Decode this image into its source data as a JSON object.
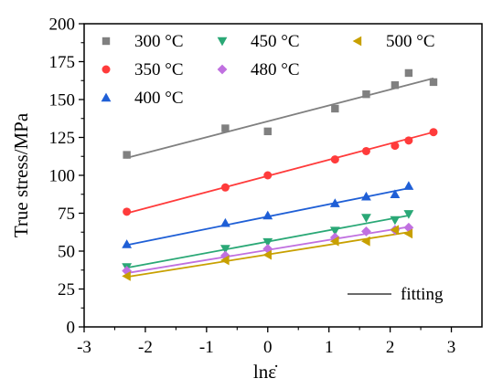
{
  "chart_data": {
    "type": "scatter",
    "xlabel": "lnε̇",
    "ylabel": "True stress/MPa",
    "xlim": [
      -3,
      3.5
    ],
    "ylim": [
      0,
      200
    ],
    "x_ticks": [
      "-3",
      "-2",
      "-1",
      "0",
      "1",
      "2",
      "3"
    ],
    "y_ticks": [
      "0",
      "25",
      "50",
      "75",
      "100",
      "125",
      "150",
      "175",
      "200"
    ],
    "grid": false,
    "legend_position": "top",
    "series": [
      {
        "name": "300 °C",
        "marker": "square",
        "color": "#808080",
        "x": [
          -2.303,
          -0.693,
          0.0,
          1.099,
          1.609,
          2.079,
          2.303,
          2.708
        ],
        "y": [
          113.5,
          131.0,
          129.0,
          144.0,
          153.5,
          159.5,
          167.5,
          161.5
        ],
        "fit": [
          [
            -2.303,
            111.5
          ],
          [
            2.708,
            164.0
          ]
        ]
      },
      {
        "name": "350 °C",
        "marker": "circle",
        "color": "#ff3b3b",
        "x": [
          -2.303,
          -0.693,
          0.0,
          1.099,
          1.609,
          2.079,
          2.303,
          2.708
        ],
        "y": [
          76.0,
          92.0,
          100.0,
          110.5,
          116.0,
          119.5,
          123.0,
          128.5
        ],
        "fit": [
          [
            -2.303,
            75.0
          ],
          [
            2.708,
            128.5
          ]
        ]
      },
      {
        "name": "400 °C",
        "marker": "triangle-up",
        "color": "#1f5fd6",
        "x": [
          -2.303,
          -0.693,
          0.0,
          1.099,
          1.609,
          2.079,
          2.303
        ],
        "y": [
          54.5,
          68.5,
          73.5,
          81.5,
          86.0,
          87.5,
          93.0
        ],
        "fit": [
          [
            -2.303,
            54.0
          ],
          [
            2.303,
            91.5
          ]
        ]
      },
      {
        "name": "450 °C",
        "marker": "triangle-down",
        "color": "#2aa876",
        "x": [
          -2.303,
          -0.693,
          0.0,
          1.099,
          1.609,
          2.079,
          2.303
        ],
        "y": [
          39.5,
          51.5,
          56.0,
          63.5,
          72.0,
          70.5,
          74.5
        ],
        "fit": [
          [
            -2.303,
            39.0
          ],
          [
            2.303,
            73.5
          ]
        ]
      },
      {
        "name": "480 °C",
        "marker": "diamond",
        "color": "#c070e0",
        "x": [
          -2.303,
          -0.693,
          0.0,
          1.099,
          1.609,
          2.079,
          2.303
        ],
        "y": [
          37.0,
          47.0,
          51.5,
          59.0,
          63.0,
          64.0,
          65.5
        ],
        "fit": [
          [
            -2.303,
            35.5
          ],
          [
            2.303,
            66.0
          ]
        ]
      },
      {
        "name": "500 °C",
        "marker": "triangle-left",
        "color": "#c8a000",
        "x": [
          -2.303,
          -0.693,
          0.0,
          1.099,
          1.609,
          2.079,
          2.303
        ],
        "y": [
          33.5,
          44.0,
          47.5,
          56.5,
          56.5,
          64.0,
          61.5
        ],
        "fit": [
          [
            -2.303,
            33.0
          ],
          [
            2.303,
            62.5
          ]
        ]
      }
    ],
    "fit_legend": {
      "name": "fitting",
      "color": "#555555"
    }
  }
}
